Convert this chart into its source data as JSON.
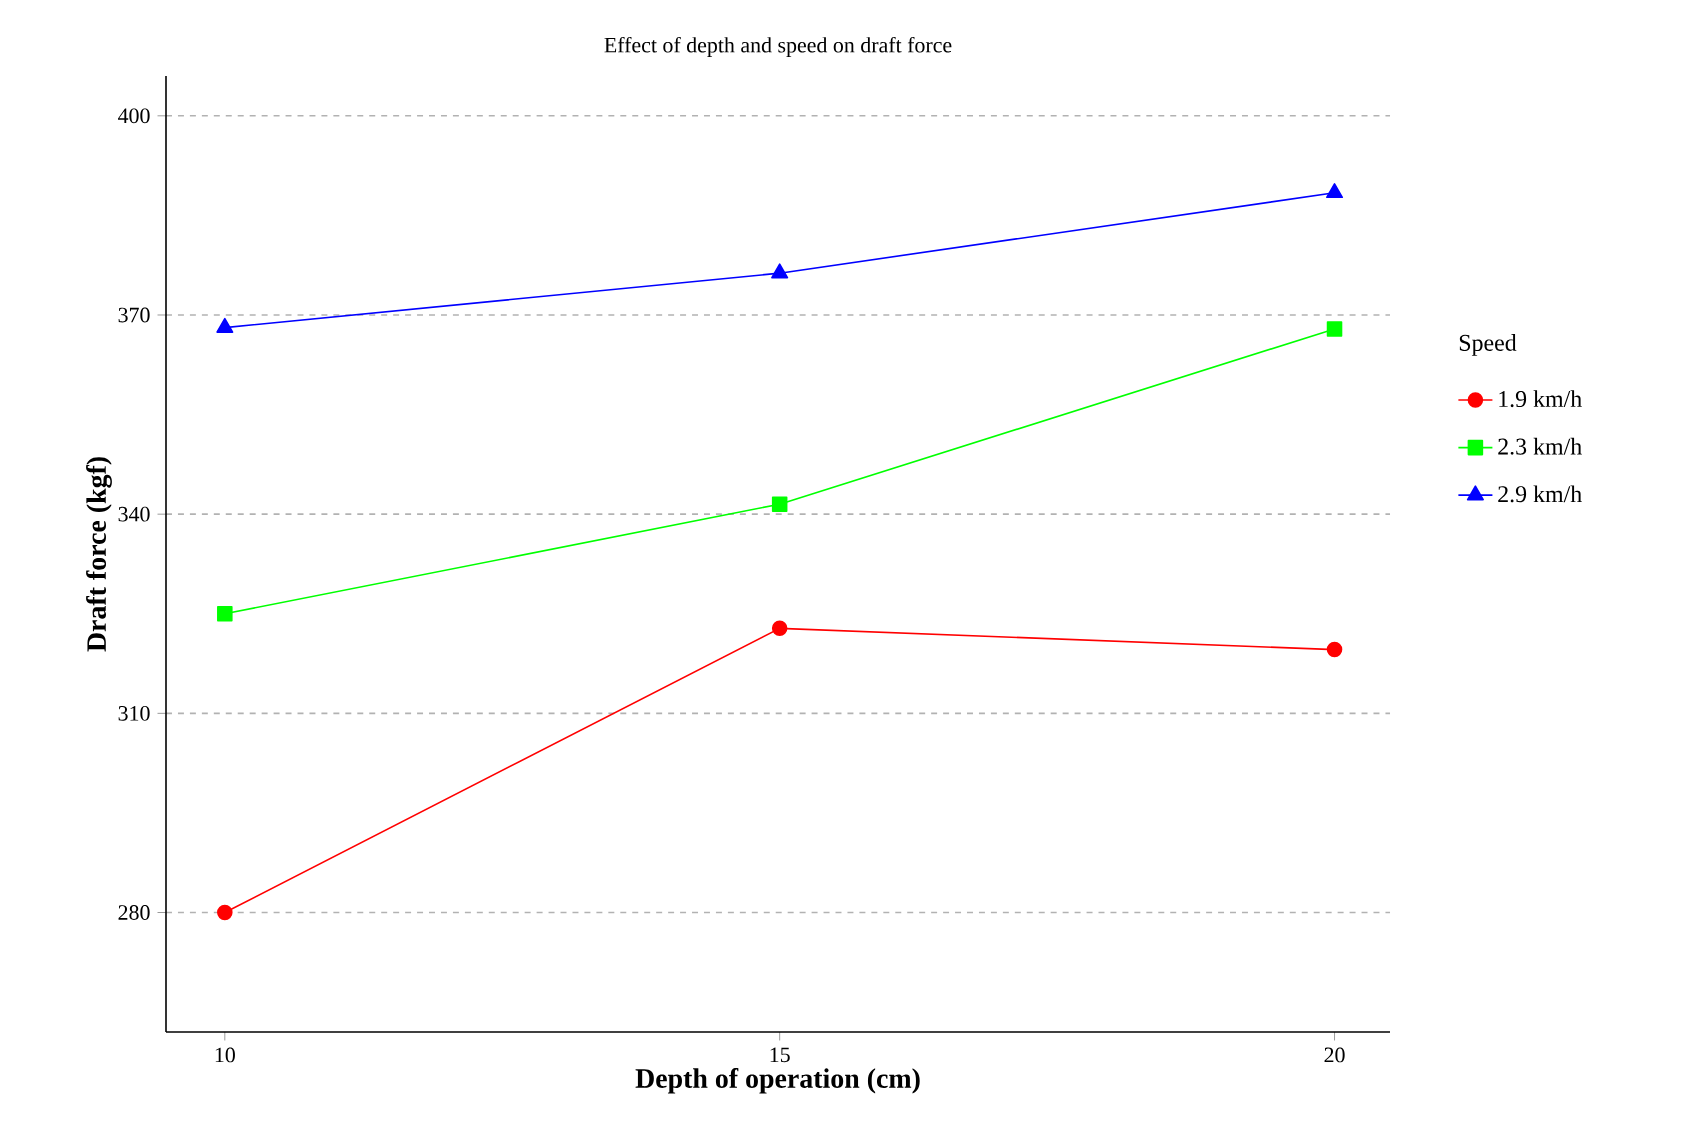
{
  "chart_data": {
    "type": "line",
    "title": "Effect of depth and speed on draft force",
    "xlabel": "Depth of operation (cm)",
    "ylabel": "Draft force (kgf)",
    "legend_title": "Speed",
    "x": [
      10,
      15,
      20
    ],
    "xlim": [
      9.47,
      20.5
    ],
    "xticks": [
      10,
      15,
      20
    ],
    "ylim": [
      262,
      406
    ],
    "yticks": [
      280,
      310,
      340,
      370,
      400
    ],
    "grid": "y",
    "legend": "right",
    "line_style": "solid",
    "series": [
      {
        "name": "1.9 km/h",
        "color": "#ff0000",
        "marker": "circle",
        "values": [
          280,
          322.8,
          319.6
        ]
      },
      {
        "name": "2.3 km/h",
        "color": "#00ff00",
        "marker": "square",
        "values": [
          325,
          341.5,
          367.9
        ]
      },
      {
        "name": "2.9 km/h",
        "color": "#0000ff",
        "marker": "triangle",
        "values": [
          368.1,
          376.3,
          388.4
        ]
      }
    ]
  }
}
